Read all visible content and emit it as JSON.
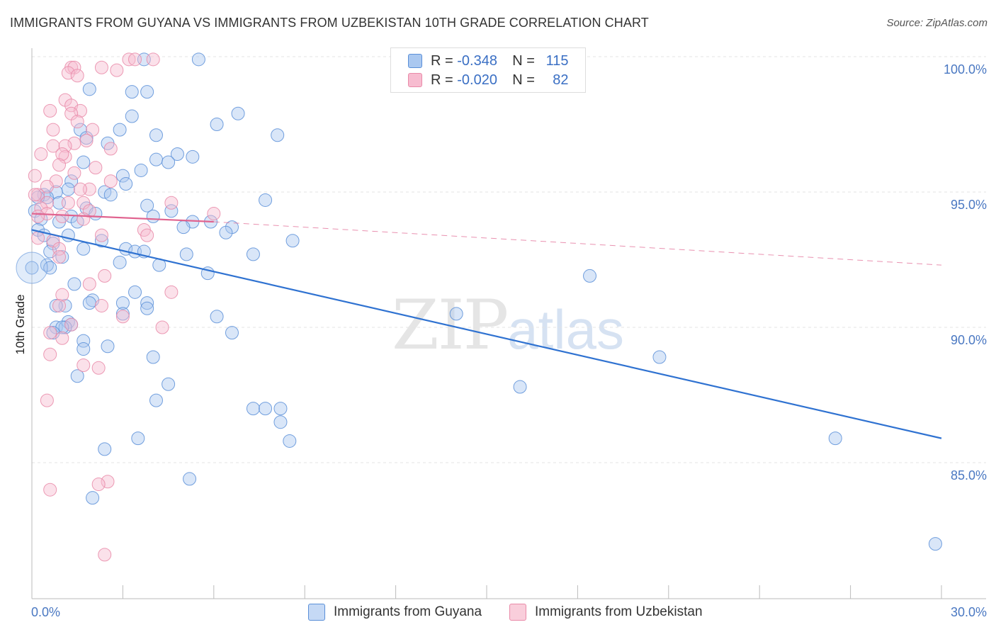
{
  "title": "IMMIGRANTS FROM GUYANA VS IMMIGRANTS FROM UZBEKISTAN 10TH GRADE CORRELATION CHART",
  "source": "Source: ZipAtlas.com",
  "watermark": {
    "zip": "ZIP",
    "atlas": "atlas"
  },
  "legend": {
    "r_label": "R =",
    "n_label": "N =",
    "series": [
      {
        "name": "Immigrants from Guyana",
        "r": "-0.348",
        "n": "115",
        "fill": "#aac8f0",
        "stroke": "#5a8fd8"
      },
      {
        "name": "Immigrants from Uzbekistan",
        "r": "-0.020",
        "n": "82",
        "fill": "#f7bcd0",
        "stroke": "#e98aa8"
      }
    ]
  },
  "colors": {
    "blue_line": "#2f72d1",
    "pink_line": "#e0638f",
    "grid": "#e3e3e3",
    "axis": "#bbbbbb",
    "tick_text": "#4a78c2"
  },
  "chart_data": {
    "type": "scatter",
    "title": "IMMIGRANTS FROM GUYANA VS IMMIGRANTS FROM UZBEKISTAN 10TH GRADE CORRELATION CHART",
    "xlabel": "",
    "ylabel": "10th Grade",
    "xlim": [
      0,
      30
    ],
    "ylim": [
      80,
      101
    ],
    "x_tick_labels": [
      {
        "value": 0,
        "label": "0.0%"
      },
      {
        "value": 30,
        "label": "30.0%"
      }
    ],
    "y_tick_labels": [
      {
        "value": 100,
        "label": "100.0%"
      },
      {
        "value": 95,
        "label": "95.0%"
      },
      {
        "value": 90,
        "label": "90.0%"
      },
      {
        "value": 85,
        "label": "85.0%"
      }
    ],
    "series": [
      {
        "name": "Immigrants from Guyana",
        "trend": {
          "x": [
            0,
            30
          ],
          "y": [
            93.6,
            85.9
          ],
          "style": "solid"
        },
        "points": [
          [
            3.7,
            99.9
          ],
          [
            5.5,
            99.9
          ],
          [
            1.9,
            98.8
          ],
          [
            3.3,
            98.7
          ],
          [
            3.8,
            98.7
          ],
          [
            6.8,
            97.9
          ],
          [
            3.3,
            97.8
          ],
          [
            6.1,
            97.5
          ],
          [
            1.6,
            97.3
          ],
          [
            2.9,
            97.3
          ],
          [
            1.8,
            97.0
          ],
          [
            4.1,
            97.1
          ],
          [
            8.1,
            97.1
          ],
          [
            2.5,
            96.8
          ],
          [
            4.8,
            96.4
          ],
          [
            5.3,
            96.3
          ],
          [
            4.1,
            96.2
          ],
          [
            4.5,
            96.1
          ],
          [
            1.7,
            96.1
          ],
          [
            3.6,
            95.8
          ],
          [
            3.0,
            95.6
          ],
          [
            1.3,
            95.4
          ],
          [
            3.1,
            95.3
          ],
          [
            1.2,
            95.1
          ],
          [
            0.4,
            94.9
          ],
          [
            2.4,
            95.0
          ],
          [
            2.6,
            94.9
          ],
          [
            0.8,
            95.0
          ],
          [
            7.7,
            94.7
          ],
          [
            0.5,
            94.8
          ],
          [
            0.2,
            94.8
          ],
          [
            0.9,
            94.6
          ],
          [
            3.8,
            94.5
          ],
          [
            1.8,
            94.4
          ],
          [
            4.6,
            94.3
          ],
          [
            2.1,
            94.2
          ],
          [
            0.1,
            94.3
          ],
          [
            4.0,
            94.1
          ],
          [
            1.3,
            94.1
          ],
          [
            0.3,
            94.0
          ],
          [
            0.9,
            93.9
          ],
          [
            1.5,
            93.9
          ],
          [
            5.3,
            93.9
          ],
          [
            5.9,
            93.9
          ],
          [
            5.0,
            93.7
          ],
          [
            6.6,
            93.7
          ],
          [
            0.2,
            93.6
          ],
          [
            6.4,
            93.5
          ],
          [
            1.2,
            93.4
          ],
          [
            0.4,
            93.4
          ],
          [
            2.3,
            93.2
          ],
          [
            8.6,
            93.2
          ],
          [
            0.7,
            93.1
          ],
          [
            3.1,
            92.9
          ],
          [
            1.7,
            92.9
          ],
          [
            0.6,
            92.8
          ],
          [
            3.4,
            92.8
          ],
          [
            3.7,
            92.8
          ],
          [
            5.1,
            92.7
          ],
          [
            7.3,
            92.7
          ],
          [
            1.0,
            92.6
          ],
          [
            2.9,
            92.4
          ],
          [
            4.2,
            92.3
          ],
          [
            0.5,
            92.3
          ],
          [
            0.6,
            92.2
          ],
          [
            0.0,
            92.2
          ],
          [
            5.8,
            92.0
          ],
          [
            18.4,
            91.9
          ],
          [
            1.4,
            91.6
          ],
          [
            3.4,
            91.3
          ],
          [
            2.0,
            91.0
          ],
          [
            3.0,
            90.9
          ],
          [
            3.8,
            90.9
          ],
          [
            1.9,
            90.9
          ],
          [
            1.1,
            90.8
          ],
          [
            0.8,
            90.8
          ],
          [
            3.8,
            90.7
          ],
          [
            14.0,
            90.5
          ],
          [
            3.0,
            90.5
          ],
          [
            6.1,
            90.4
          ],
          [
            1.2,
            90.2
          ],
          [
            1.3,
            90.1
          ],
          [
            0.8,
            90.0
          ],
          [
            1.1,
            90.0
          ],
          [
            1.0,
            90.0
          ],
          [
            6.6,
            89.8
          ],
          [
            0.7,
            89.8
          ],
          [
            1.7,
            89.5
          ],
          [
            2.5,
            89.3
          ],
          [
            1.7,
            89.2
          ],
          [
            20.7,
            88.9
          ],
          [
            4.0,
            88.9
          ],
          [
            1.5,
            88.2
          ],
          [
            4.5,
            87.9
          ],
          [
            16.1,
            87.8
          ],
          [
            4.1,
            87.3
          ],
          [
            7.3,
            87.0
          ],
          [
            7.7,
            87.0
          ],
          [
            8.2,
            87.0
          ],
          [
            8.2,
            86.5
          ],
          [
            8.5,
            85.8
          ],
          [
            3.5,
            85.9
          ],
          [
            26.5,
            85.9
          ],
          [
            2.4,
            85.5
          ],
          [
            5.2,
            84.4
          ],
          [
            2.0,
            83.7
          ],
          [
            29.8,
            82.0
          ]
        ]
      },
      {
        "name": "Immigrants from Uzbekistan",
        "trend": {
          "x": [
            0,
            6.0
          ],
          "y": [
            94.2,
            93.9
          ],
          "style": "solid",
          "dashed_extension": {
            "x": [
              6.0,
              30
            ],
            "y": [
              93.9,
              92.3
            ]
          }
        },
        "points": [
          [
            3.2,
            99.9
          ],
          [
            4.0,
            99.9
          ],
          [
            3.4,
            99.9
          ],
          [
            2.3,
            99.6
          ],
          [
            1.3,
            99.6
          ],
          [
            1.4,
            99.6
          ],
          [
            2.8,
            99.5
          ],
          [
            1.2,
            99.4
          ],
          [
            1.5,
            99.3
          ],
          [
            1.1,
            98.4
          ],
          [
            1.3,
            98.2
          ],
          [
            1.6,
            98.0
          ],
          [
            1.3,
            97.9
          ],
          [
            0.6,
            98.0
          ],
          [
            1.5,
            97.6
          ],
          [
            0.7,
            97.3
          ],
          [
            2.0,
            97.3
          ],
          [
            1.8,
            96.9
          ],
          [
            1.4,
            96.8
          ],
          [
            0.7,
            96.7
          ],
          [
            1.1,
            96.7
          ],
          [
            2.6,
            96.6
          ],
          [
            1.1,
            96.3
          ],
          [
            1.0,
            96.4
          ],
          [
            0.3,
            96.4
          ],
          [
            0.9,
            96.0
          ],
          [
            2.1,
            95.9
          ],
          [
            1.4,
            95.7
          ],
          [
            0.1,
            95.6
          ],
          [
            0.8,
            95.4
          ],
          [
            2.6,
            95.4
          ],
          [
            1.9,
            95.1
          ],
          [
            1.6,
            95.1
          ],
          [
            0.5,
            95.2
          ],
          [
            0.2,
            94.9
          ],
          [
            0.1,
            94.9
          ],
          [
            0.5,
            94.6
          ],
          [
            4.6,
            94.6
          ],
          [
            1.7,
            94.6
          ],
          [
            1.2,
            94.6
          ],
          [
            0.3,
            94.4
          ],
          [
            0.5,
            94.2
          ],
          [
            1.9,
            94.3
          ],
          [
            0.2,
            94.1
          ],
          [
            6.0,
            94.2
          ],
          [
            1.0,
            94.1
          ],
          [
            1.7,
            94.0
          ],
          [
            3.7,
            93.6
          ],
          [
            3.8,
            93.4
          ],
          [
            2.3,
            93.4
          ],
          [
            0.2,
            93.3
          ],
          [
            0.7,
            93.2
          ],
          [
            0.9,
            92.9
          ],
          [
            0.9,
            92.6
          ],
          [
            2.4,
            91.9
          ],
          [
            1.9,
            91.6
          ],
          [
            4.6,
            91.3
          ],
          [
            1.0,
            91.2
          ],
          [
            0.9,
            90.8
          ],
          [
            2.3,
            90.8
          ],
          [
            3.0,
            90.4
          ],
          [
            1.3,
            90.1
          ],
          [
            4.3,
            90.0
          ],
          [
            0.6,
            89.8
          ],
          [
            1.0,
            89.6
          ],
          [
            0.6,
            89.0
          ],
          [
            1.7,
            88.6
          ],
          [
            2.2,
            88.5
          ],
          [
            0.5,
            87.3
          ],
          [
            2.5,
            84.3
          ],
          [
            2.2,
            84.2
          ],
          [
            0.6,
            84.0
          ],
          [
            2.4,
            81.6
          ]
        ]
      }
    ]
  }
}
